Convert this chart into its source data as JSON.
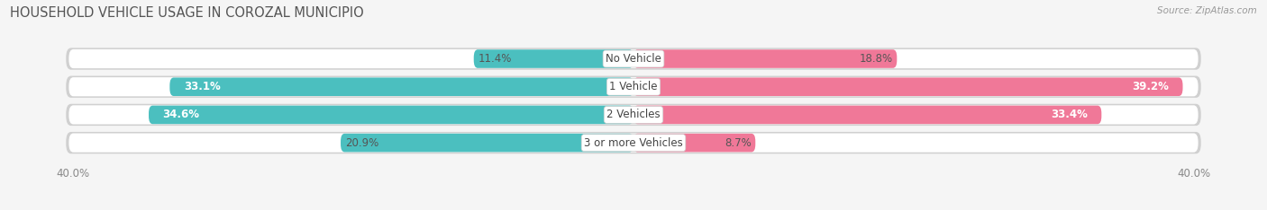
{
  "title": "HOUSEHOLD VEHICLE USAGE IN COROZAL MUNICIPIO",
  "source": "Source: ZipAtlas.com",
  "categories": [
    "No Vehicle",
    "1 Vehicle",
    "2 Vehicles",
    "3 or more Vehicles"
  ],
  "owner_values": [
    11.4,
    33.1,
    34.6,
    20.9
  ],
  "renter_values": [
    18.8,
    39.2,
    33.4,
    8.7
  ],
  "owner_color": "#4bbfbf",
  "renter_color": "#f07898",
  "bg_color": "#f5f5f5",
  "row_bg_color": "#e8e8e8",
  "bar_height": 0.72,
  "max_val": 40.0,
  "title_fontsize": 10.5,
  "label_fontsize": 8.5,
  "tick_fontsize": 8.5,
  "source_fontsize": 7.5
}
